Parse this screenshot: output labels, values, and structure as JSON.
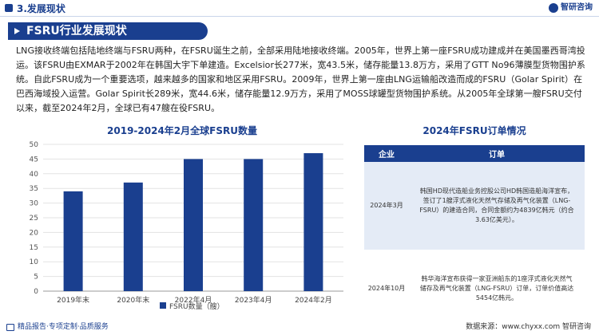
{
  "header": {
    "section_title": "3.发展现状",
    "brand": "智研咨询"
  },
  "main": {
    "title": "FSRU行业发展现状",
    "paragraph": "LNG接收终端包括陆地终端与FSRU两种，在FSRU诞生之前，全部采用陆地接收终端。2005年，世界上第一座FSRU成功建成并在美国墨西哥湾投运。该FSRU由EXMAR于2002年在韩国大宇下单建造。Excelsior长277米，宽43.5米，储存能量13.8万方，采用了GTT No96薄膜型货物围护系统。自此FSRU成为一个重要选项，越来越多的国家和地区采用FSRU。2009年，世界上第一座由LNG运输船改造而成的FSRU（Golar Spirit）在巴西海域投入运营。Golar Spirit长289米，宽44.6米，储存能量12.9万方，采用了MOSS球罐型货物围护系统。从2005年全球第一艘FSRU交付以来，截至2024年2月，全球已有47艘在役FSRU。"
  },
  "chart_data": {
    "type": "bar",
    "title": "2019-2024年2月全球FSRU数量",
    "categories": [
      "2019年末",
      "2020年末",
      "2022年4月",
      "2023年4月",
      "2024年2月"
    ],
    "series": [
      {
        "name": "FSRU数量（艘）",
        "values": [
          34,
          37,
          45,
          45,
          47
        ]
      }
    ],
    "ylim": [
      0,
      50
    ],
    "yticks": [
      0,
      5,
      10,
      15,
      20,
      25,
      30,
      35,
      40,
      45,
      50
    ],
    "grid": true,
    "legend": "bottom",
    "bar_color": "#1a3f8f"
  },
  "orders": {
    "title": "2024年FSRU订单情况",
    "headers": [
      "企业",
      "订单"
    ],
    "rows": [
      {
        "date": "2024年3月",
        "order": "韩国HD现代造船业务控股公司HD韩国造船海洋宣布，签订了1艘浮式液化天然气存储及再气化装置（LNG-FSRU）的建造合同，合同金额约为4839亿韩元（约合3.63亿美元）。"
      },
      {
        "date": "2024年10月",
        "order": "韩华海洋宣布获得一家亚洲船东的1座浮式液化天然气储存及再气化装置（LNG-FSRU）订单，订单价值高达5454亿韩元。"
      }
    ]
  },
  "footer": {
    "left": "精品报告·专项定制·品质服务",
    "right_label": "www.chyxx.com",
    "right_brand": "智研咨询"
  },
  "colors": {
    "primary": "#1a3f8f",
    "row_shade": "#e4ebf6"
  }
}
